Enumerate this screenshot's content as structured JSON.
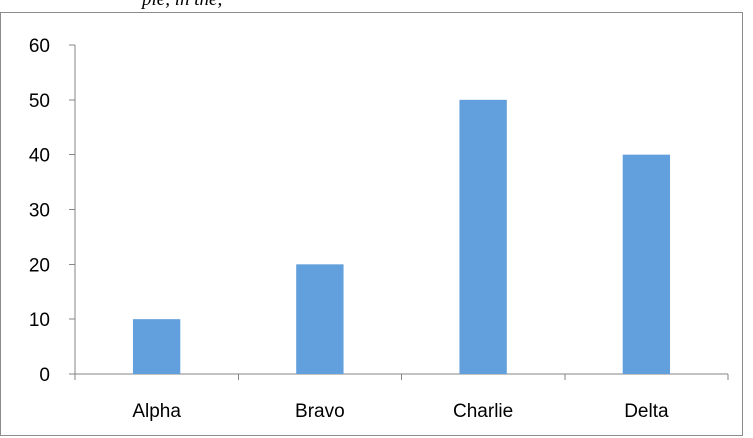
{
  "header_fragment": "pie, in the,",
  "chart_data": {
    "type": "bar",
    "title": "",
    "xlabel": "",
    "ylabel": "",
    "categories": [
      "Alpha",
      "Bravo",
      "Charlie",
      "Delta"
    ],
    "series": [
      {
        "values": [
          10,
          20,
          50,
          40
        ]
      }
    ],
    "ylim": [
      0,
      60
    ],
    "yticks": [
      "0",
      "10",
      "20",
      "30",
      "40",
      "50",
      "60"
    ],
    "grid": false,
    "legend": "none",
    "bar_color": "#629fdd"
  }
}
